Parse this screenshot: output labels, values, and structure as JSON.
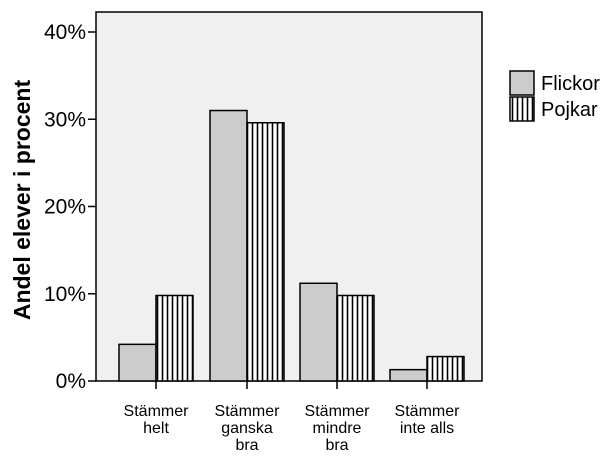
{
  "chart_data": {
    "type": "bar",
    "title": "",
    "xlabel": "",
    "ylabel": "Andel elever i procent",
    "ylim": [
      0,
      40
    ],
    "yticks": [
      "0%",
      "10%",
      "20%",
      "30%",
      "40%"
    ],
    "yticks_values": [
      0,
      10,
      20,
      30,
      40
    ],
    "grid": false,
    "legend_position": "right",
    "categories": [
      [
        "Stämmer",
        "helt"
      ],
      [
        "Stämmer",
        "ganska",
        "bra"
      ],
      [
        "Stämmer",
        "mindre",
        "bra"
      ],
      [
        "Stämmer",
        "inte alls"
      ]
    ],
    "series": [
      {
        "name": "Flickor",
        "values": [
          4.2,
          31.0,
          11.2,
          1.3
        ],
        "fill": "#cccccc",
        "pattern": "solid"
      },
      {
        "name": "Pojkar",
        "values": [
          9.8,
          29.6,
          9.8,
          2.8
        ],
        "fill": "#ffffff",
        "pattern": "vertical-stripes"
      }
    ],
    "plot_background": "#f0f0f0",
    "bar_stroke": "#000000"
  }
}
